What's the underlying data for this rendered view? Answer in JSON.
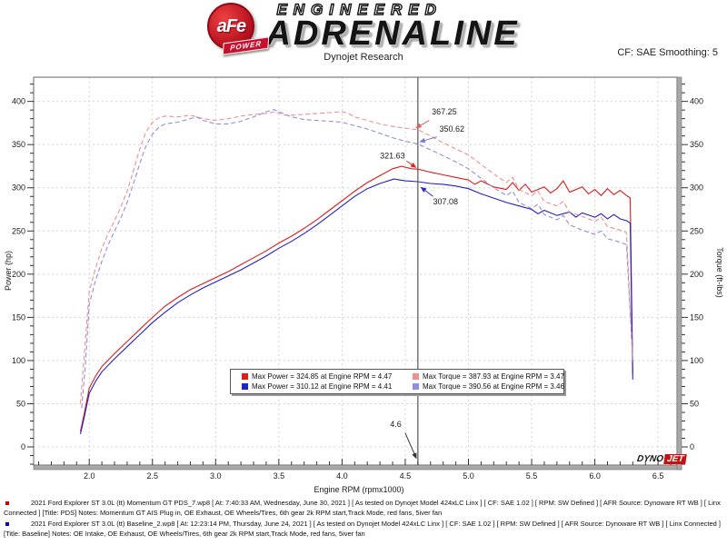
{
  "header": {
    "logo": {
      "brand": "aFe",
      "brand_sub": "POWER",
      "line1": "ENGINEERED",
      "line2": "ADRENALINE"
    },
    "subtitle": "Dynojet Research",
    "smoothing": "CF: SAE Smoothing: 5"
  },
  "chart_data": {
    "type": "line",
    "xlabel": "Engine RPM (rpmx1000)",
    "ylabel_left": "Power (hp)",
    "ylabel_right": "Torque (ft-lbs)",
    "xlim": [
      1.56,
      6.65
    ],
    "ylim": [
      -21,
      428
    ],
    "xticks": [
      2.0,
      2.5,
      3.0,
      3.5,
      4.0,
      4.5,
      5.0,
      5.5,
      6.0,
      6.5
    ],
    "yticks": [
      0,
      50,
      100,
      150,
      200,
      250,
      300,
      350,
      400
    ],
    "grid": true,
    "cursor": {
      "rpm": 4.6,
      "label": "4.6"
    },
    "series": [
      {
        "name": "power-momentum-gt",
        "color": "#dd1c1c",
        "dash": false,
        "axis": "left",
        "points": [
          [
            1.93,
            18
          ],
          [
            1.96,
            38
          ],
          [
            2.0,
            68
          ],
          [
            2.05,
            82
          ],
          [
            2.1,
            93
          ],
          [
            2.2,
            108
          ],
          [
            2.3,
            122
          ],
          [
            2.4,
            136
          ],
          [
            2.5,
            150
          ],
          [
            2.6,
            163
          ],
          [
            2.7,
            173
          ],
          [
            2.8,
            182
          ],
          [
            2.9,
            189
          ],
          [
            3.0,
            196
          ],
          [
            3.1,
            203
          ],
          [
            3.2,
            211
          ],
          [
            3.3,
            219
          ],
          [
            3.4,
            227
          ],
          [
            3.5,
            236
          ],
          [
            3.6,
            244
          ],
          [
            3.7,
            253
          ],
          [
            3.8,
            263
          ],
          [
            3.9,
            274
          ],
          [
            4.0,
            285
          ],
          [
            4.1,
            296
          ],
          [
            4.2,
            306
          ],
          [
            4.3,
            314
          ],
          [
            4.4,
            322
          ],
          [
            4.47,
            324.85
          ],
          [
            4.55,
            322
          ],
          [
            4.6,
            321.63
          ],
          [
            4.7,
            318
          ],
          [
            4.8,
            315
          ],
          [
            4.9,
            312
          ],
          [
            5.0,
            309
          ],
          [
            5.05,
            304
          ],
          [
            5.1,
            308
          ],
          [
            5.2,
            301
          ],
          [
            5.3,
            298
          ],
          [
            5.35,
            306
          ],
          [
            5.4,
            297
          ],
          [
            5.45,
            304
          ],
          [
            5.5,
            295
          ],
          [
            5.6,
            301
          ],
          [
            5.65,
            294
          ],
          [
            5.7,
            299
          ],
          [
            5.75,
            308
          ],
          [
            5.8,
            295
          ],
          [
            5.9,
            301
          ],
          [
            5.95,
            293
          ],
          [
            6.0,
            298
          ],
          [
            6.05,
            291
          ],
          [
            6.1,
            299
          ],
          [
            6.15,
            292
          ],
          [
            6.2,
            297
          ],
          [
            6.25,
            291
          ],
          [
            6.28,
            288
          ],
          [
            6.3,
            85
          ]
        ]
      },
      {
        "name": "power-baseline",
        "color": "#2121c4",
        "dash": false,
        "axis": "left",
        "points": [
          [
            1.93,
            15
          ],
          [
            1.96,
            34
          ],
          [
            2.0,
            62
          ],
          [
            2.05,
            76
          ],
          [
            2.1,
            87
          ],
          [
            2.2,
            102
          ],
          [
            2.3,
            116
          ],
          [
            2.4,
            130
          ],
          [
            2.5,
            144
          ],
          [
            2.6,
            156
          ],
          [
            2.7,
            167
          ],
          [
            2.8,
            176
          ],
          [
            2.9,
            184
          ],
          [
            3.0,
            191
          ],
          [
            3.1,
            198
          ],
          [
            3.2,
            205
          ],
          [
            3.3,
            213
          ],
          [
            3.4,
            221
          ],
          [
            3.5,
            230
          ],
          [
            3.6,
            238
          ],
          [
            3.7,
            247
          ],
          [
            3.8,
            257
          ],
          [
            3.9,
            268
          ],
          [
            4.0,
            279
          ],
          [
            4.1,
            290
          ],
          [
            4.2,
            299
          ],
          [
            4.3,
            305
          ],
          [
            4.41,
            310.12
          ],
          [
            4.5,
            308
          ],
          [
            4.6,
            307.08
          ],
          [
            4.7,
            305
          ],
          [
            4.8,
            304
          ],
          [
            4.9,
            302
          ],
          [
            5.0,
            299
          ],
          [
            5.1,
            293
          ],
          [
            5.2,
            288
          ],
          [
            5.3,
            283
          ],
          [
            5.4,
            279
          ],
          [
            5.5,
            275
          ],
          [
            5.55,
            270
          ],
          [
            5.6,
            274
          ],
          [
            5.7,
            268
          ],
          [
            5.8,
            272
          ],
          [
            5.85,
            266
          ],
          [
            5.9,
            271
          ],
          [
            6.0,
            266
          ],
          [
            6.05,
            270
          ],
          [
            6.1,
            264
          ],
          [
            6.15,
            269
          ],
          [
            6.2,
            264
          ],
          [
            6.25,
            262
          ],
          [
            6.28,
            259
          ],
          [
            6.3,
            78
          ]
        ]
      },
      {
        "name": "torque-momentum-gt",
        "color": "#ef8f8f",
        "dash": true,
        "axis": "right",
        "points": [
          [
            1.93,
            50
          ],
          [
            1.96,
            105
          ],
          [
            2.0,
            180
          ],
          [
            2.05,
            207
          ],
          [
            2.1,
            230
          ],
          [
            2.15,
            247
          ],
          [
            2.2,
            262
          ],
          [
            2.25,
            278
          ],
          [
            2.3,
            296
          ],
          [
            2.35,
            320
          ],
          [
            2.4,
            345
          ],
          [
            2.45,
            365
          ],
          [
            2.5,
            376
          ],
          [
            2.55,
            381
          ],
          [
            2.6,
            383
          ],
          [
            2.7,
            382
          ],
          [
            2.8,
            384
          ],
          [
            2.9,
            380
          ],
          [
            3.0,
            378
          ],
          [
            3.1,
            380
          ],
          [
            3.2,
            383
          ],
          [
            3.3,
            385
          ],
          [
            3.4,
            386
          ],
          [
            3.47,
            387.93
          ],
          [
            3.55,
            384
          ],
          [
            3.6,
            384
          ],
          [
            3.7,
            385
          ],
          [
            3.8,
            386
          ],
          [
            3.9,
            387
          ],
          [
            4.0,
            388
          ],
          [
            4.05,
            386
          ],
          [
            4.1,
            382
          ],
          [
            4.2,
            378
          ],
          [
            4.3,
            374
          ],
          [
            4.4,
            371
          ],
          [
            4.5,
            369
          ],
          [
            4.6,
            367.25
          ],
          [
            4.7,
            360
          ],
          [
            4.8,
            352
          ],
          [
            4.9,
            345
          ],
          [
            5.0,
            338
          ],
          [
            5.1,
            327
          ],
          [
            5.2,
            316
          ],
          [
            5.3,
            306
          ],
          [
            5.35,
            312
          ],
          [
            5.4,
            298
          ],
          [
            5.5,
            291
          ],
          [
            5.55,
            296
          ],
          [
            5.6,
            284
          ],
          [
            5.7,
            279
          ],
          [
            5.75,
            284
          ],
          [
            5.8,
            272
          ],
          [
            5.9,
            267
          ],
          [
            6.0,
            261
          ],
          [
            6.05,
            266
          ],
          [
            6.1,
            255
          ],
          [
            6.2,
            251
          ],
          [
            6.25,
            248
          ],
          [
            6.3,
            100
          ]
        ]
      },
      {
        "name": "torque-baseline",
        "color": "#8f8fdf",
        "dash": true,
        "axis": "right",
        "points": [
          [
            1.94,
            45
          ],
          [
            1.97,
            95
          ],
          [
            2.0,
            165
          ],
          [
            2.05,
            193
          ],
          [
            2.1,
            215
          ],
          [
            2.15,
            234
          ],
          [
            2.2,
            250
          ],
          [
            2.25,
            265
          ],
          [
            2.3,
            283
          ],
          [
            2.35,
            305
          ],
          [
            2.4,
            328
          ],
          [
            2.45,
            349
          ],
          [
            2.5,
            362
          ],
          [
            2.55,
            370
          ],
          [
            2.6,
            374
          ],
          [
            2.7,
            376
          ],
          [
            2.8,
            380
          ],
          [
            2.85,
            382
          ],
          [
            2.9,
            378
          ],
          [
            3.0,
            374
          ],
          [
            3.1,
            374
          ],
          [
            3.2,
            377
          ],
          [
            3.3,
            382
          ],
          [
            3.4,
            388
          ],
          [
            3.46,
            390.56
          ],
          [
            3.55,
            385
          ],
          [
            3.6,
            382
          ],
          [
            3.7,
            379
          ],
          [
            3.8,
            378
          ],
          [
            3.9,
            377
          ],
          [
            4.0,
            376
          ],
          [
            4.1,
            372
          ],
          [
            4.2,
            368
          ],
          [
            4.3,
            363
          ],
          [
            4.4,
            358
          ],
          [
            4.5,
            354
          ],
          [
            4.6,
            350.62
          ],
          [
            4.7,
            344
          ],
          [
            4.8,
            337
          ],
          [
            4.9,
            330
          ],
          [
            5.0,
            322
          ],
          [
            5.1,
            311
          ],
          [
            5.2,
            300
          ],
          [
            5.3,
            291
          ],
          [
            5.35,
            296
          ],
          [
            5.4,
            283
          ],
          [
            5.5,
            276
          ],
          [
            5.55,
            281
          ],
          [
            5.6,
            269
          ],
          [
            5.7,
            263
          ],
          [
            5.75,
            268
          ],
          [
            5.8,
            257
          ],
          [
            5.9,
            251
          ],
          [
            6.0,
            246
          ],
          [
            6.05,
            250
          ],
          [
            6.1,
            241
          ],
          [
            6.2,
            237
          ],
          [
            6.25,
            234
          ],
          [
            6.3,
            100
          ]
        ]
      }
    ],
    "annotations": [
      {
        "text": "367.25",
        "color": "#e05c5c",
        "tx": 4.71,
        "tv": 385,
        "sx": 4.69,
        "sv": 378,
        "ex": 4.58,
        "ev": 369
      },
      {
        "text": "350.62",
        "color": "#7878d8",
        "tx": 4.77,
        "tv": 365,
        "sx": 4.75,
        "sv": 359,
        "ex": 4.61,
        "ev": 353
      },
      {
        "text": "321.63",
        "color": "#dd2222",
        "tx": 4.3,
        "tv": 334,
        "sx": 4.51,
        "sv": 331,
        "ex": 4.59,
        "ev": 323
      },
      {
        "text": "307.08",
        "color": "#2a2ad0",
        "tx": 4.72,
        "tv": 281,
        "sx": 4.72,
        "sv": 290,
        "ex": 4.62,
        "ev": 301
      },
      {
        "text": "4.6",
        "color": "#333333",
        "tx": 4.38,
        "tv": 23,
        "sx": 4.5,
        "sv": 16,
        "ex": 4.59,
        "ev": -14
      }
    ],
    "legend": [
      {
        "color": "#dd1c1c",
        "text": "Max Power = 324.85 at Engine RPM = 4.47"
      },
      {
        "color": "#ef8f8f",
        "text": "Max Torque = 387.93 at Engine RPM = 3.47"
      },
      {
        "color": "#2121c4",
        "text": "Max Power = 310.12 at Engine RPM = 4.41"
      },
      {
        "color": "#8f8fdf",
        "text": "Max Torque = 390.56 at Engine RPM = 3.46"
      }
    ],
    "watermark": {
      "part1": "DYNO",
      "part2": "JET"
    }
  },
  "footer": {
    "entries": [
      {
        "marker": "#cc0000",
        "text": "2021 Ford Explorer ST 3.0L (tt) Momentum GT PDS_7.wp8 [ At: 7:40:33 AM, Wednesday, June 30, 2021 ] [ As tested on Dynojet Model 424xLC Linx ] [ CF: SAE 1.02 ] [ RPM: SW Defined ] [ AFR Source: Dynoware RT WB ] [ Linx Connected ] [Title: PDS]  Notes: Momentum GT AIS Plug in, OE Exhaust, OE Wheels/Tires, 6th gear 2k RPM start,Track Mode, red fans, 5iver fan"
      },
      {
        "marker": "#0000bb",
        "text": "2021 Ford Explorer ST 3.0L (tt) Baseline_2.wp8 [ At: 12:23:14 PM, Thursday, June 24, 2021 ] [ As tested on Dynojet Model 424xLC Linx ] [ CF: SAE 1.02 ] [ RPM: SW Defined ] [ AFR Source: Dynoware RT WB ] [ Linx Connected ] [Title: Baseline]  Notes: OE Intake, OE Exhaust, OE Wheels/Tires, 6th gear 2k RPM start,Track Mode, red fans, 5iver fan"
      }
    ]
  }
}
